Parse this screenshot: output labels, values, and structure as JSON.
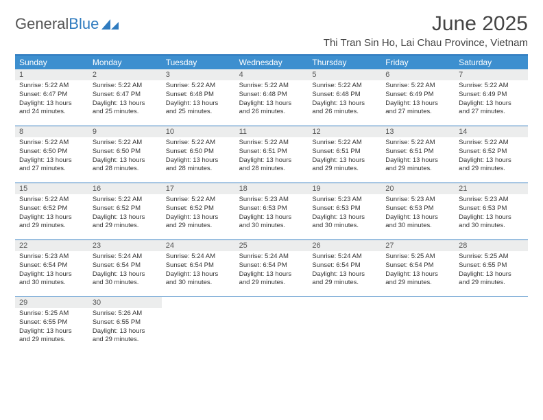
{
  "logo": {
    "text1": "General",
    "text2": "Blue"
  },
  "title": "June 2025",
  "location": "Thi Tran Sin Ho, Lai Chau Province, Vietnam",
  "colors": {
    "accent": "#2f7bbf",
    "headerBg": "#3d8fcf",
    "dayNumBg": "#eceded",
    "text": "#333333"
  },
  "dayNames": [
    "Sunday",
    "Monday",
    "Tuesday",
    "Wednesday",
    "Thursday",
    "Friday",
    "Saturday"
  ],
  "weeks": [
    [
      {
        "n": "1",
        "sr": "5:22 AM",
        "ss": "6:47 PM",
        "dl": "13 hours and 24 minutes."
      },
      {
        "n": "2",
        "sr": "5:22 AM",
        "ss": "6:47 PM",
        "dl": "13 hours and 25 minutes."
      },
      {
        "n": "3",
        "sr": "5:22 AM",
        "ss": "6:48 PM",
        "dl": "13 hours and 25 minutes."
      },
      {
        "n": "4",
        "sr": "5:22 AM",
        "ss": "6:48 PM",
        "dl": "13 hours and 26 minutes."
      },
      {
        "n": "5",
        "sr": "5:22 AM",
        "ss": "6:48 PM",
        "dl": "13 hours and 26 minutes."
      },
      {
        "n": "6",
        "sr": "5:22 AM",
        "ss": "6:49 PM",
        "dl": "13 hours and 27 minutes."
      },
      {
        "n": "7",
        "sr": "5:22 AM",
        "ss": "6:49 PM",
        "dl": "13 hours and 27 minutes."
      }
    ],
    [
      {
        "n": "8",
        "sr": "5:22 AM",
        "ss": "6:50 PM",
        "dl": "13 hours and 27 minutes."
      },
      {
        "n": "9",
        "sr": "5:22 AM",
        "ss": "6:50 PM",
        "dl": "13 hours and 28 minutes."
      },
      {
        "n": "10",
        "sr": "5:22 AM",
        "ss": "6:50 PM",
        "dl": "13 hours and 28 minutes."
      },
      {
        "n": "11",
        "sr": "5:22 AM",
        "ss": "6:51 PM",
        "dl": "13 hours and 28 minutes."
      },
      {
        "n": "12",
        "sr": "5:22 AM",
        "ss": "6:51 PM",
        "dl": "13 hours and 29 minutes."
      },
      {
        "n": "13",
        "sr": "5:22 AM",
        "ss": "6:51 PM",
        "dl": "13 hours and 29 minutes."
      },
      {
        "n": "14",
        "sr": "5:22 AM",
        "ss": "6:52 PM",
        "dl": "13 hours and 29 minutes."
      }
    ],
    [
      {
        "n": "15",
        "sr": "5:22 AM",
        "ss": "6:52 PM",
        "dl": "13 hours and 29 minutes."
      },
      {
        "n": "16",
        "sr": "5:22 AM",
        "ss": "6:52 PM",
        "dl": "13 hours and 29 minutes."
      },
      {
        "n": "17",
        "sr": "5:22 AM",
        "ss": "6:52 PM",
        "dl": "13 hours and 29 minutes."
      },
      {
        "n": "18",
        "sr": "5:23 AM",
        "ss": "6:53 PM",
        "dl": "13 hours and 30 minutes."
      },
      {
        "n": "19",
        "sr": "5:23 AM",
        "ss": "6:53 PM",
        "dl": "13 hours and 30 minutes."
      },
      {
        "n": "20",
        "sr": "5:23 AM",
        "ss": "6:53 PM",
        "dl": "13 hours and 30 minutes."
      },
      {
        "n": "21",
        "sr": "5:23 AM",
        "ss": "6:53 PM",
        "dl": "13 hours and 30 minutes."
      }
    ],
    [
      {
        "n": "22",
        "sr": "5:23 AM",
        "ss": "6:54 PM",
        "dl": "13 hours and 30 minutes."
      },
      {
        "n": "23",
        "sr": "5:24 AM",
        "ss": "6:54 PM",
        "dl": "13 hours and 30 minutes."
      },
      {
        "n": "24",
        "sr": "5:24 AM",
        "ss": "6:54 PM",
        "dl": "13 hours and 30 minutes."
      },
      {
        "n": "25",
        "sr": "5:24 AM",
        "ss": "6:54 PM",
        "dl": "13 hours and 29 minutes."
      },
      {
        "n": "26",
        "sr": "5:24 AM",
        "ss": "6:54 PM",
        "dl": "13 hours and 29 minutes."
      },
      {
        "n": "27",
        "sr": "5:25 AM",
        "ss": "6:54 PM",
        "dl": "13 hours and 29 minutes."
      },
      {
        "n": "28",
        "sr": "5:25 AM",
        "ss": "6:55 PM",
        "dl": "13 hours and 29 minutes."
      }
    ],
    [
      {
        "n": "29",
        "sr": "5:25 AM",
        "ss": "6:55 PM",
        "dl": "13 hours and 29 minutes."
      },
      {
        "n": "30",
        "sr": "5:26 AM",
        "ss": "6:55 PM",
        "dl": "13 hours and 29 minutes."
      },
      null,
      null,
      null,
      null,
      null
    ]
  ],
  "labels": {
    "sunrise": "Sunrise: ",
    "sunset": "Sunset: ",
    "daylight": "Daylight: "
  }
}
